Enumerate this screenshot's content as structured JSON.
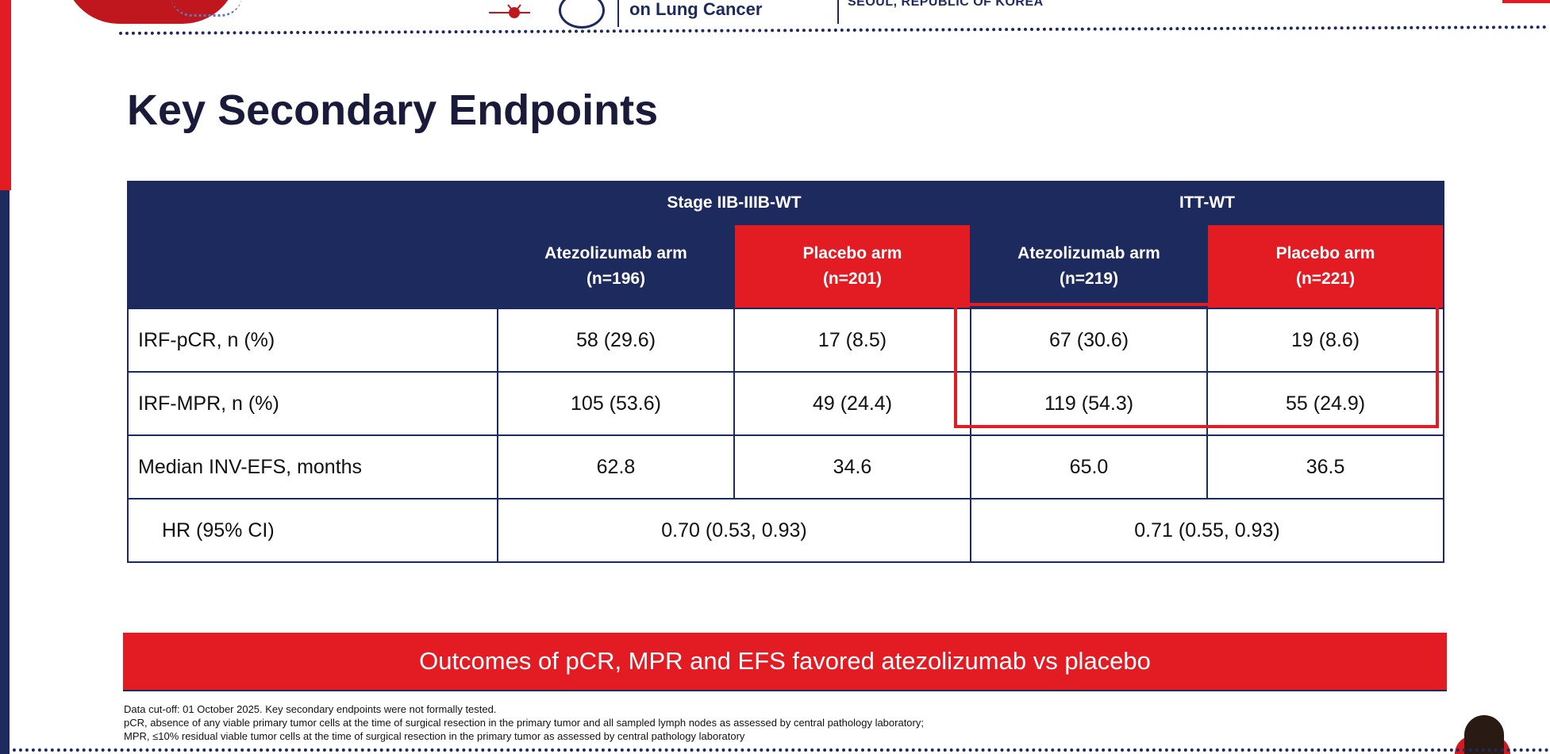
{
  "header": {
    "conference_line": "on Lung Cancer",
    "location": "SEOUL, REPUBLIC OF KOREA"
  },
  "title": "Key Secondary Endpoints",
  "table": {
    "groups": [
      {
        "label": "Stage IIB-IIIB-WT",
        "arms": [
          {
            "name": "Atezolizumab arm",
            "n": "(n=196)"
          },
          {
            "name": "Placebo arm",
            "n": "(n=201)"
          }
        ]
      },
      {
        "label": "ITT-WT",
        "arms": [
          {
            "name": "Atezolizumab arm",
            "n": "(n=219)"
          },
          {
            "name": "Placebo arm",
            "n": "(n=221)"
          }
        ]
      }
    ],
    "rows": [
      {
        "label": "IRF-pCR, n (%)",
        "values": [
          "58 (29.6)",
          "17 (8.5)",
          "67 (30.6)",
          "19 (8.6)"
        ]
      },
      {
        "label": "IRF-MPR, n (%)",
        "values": [
          "105 (53.6)",
          "49 (24.4)",
          "119 (54.3)",
          "55 (24.9)"
        ]
      },
      {
        "label": "Median INV-EFS, months",
        "values": [
          "62.8",
          "34.6",
          "65.0",
          "36.5"
        ]
      }
    ],
    "hr_row": {
      "label": "HR (95% CI)",
      "values": [
        "0.70 (0.53, 0.93)",
        "0.71 (0.55, 0.93)"
      ]
    }
  },
  "banner": "Outcomes of pCR, MPR and EFS favored atezolizumab vs placebo",
  "footnotes": [
    "Data cut-off: 01 October 2025. Key secondary endpoints were not formally tested.",
    "pCR, absence of any viable primary tumor cells at the time of surgical resection in the primary tumor and all sampled lymph nodes as assessed by central pathology laboratory;",
    "MPR, ≤10% residual viable tumor cells at the time of surgical resection in the primary tumor as assessed by central pathology laboratory"
  ],
  "colors": {
    "navy": "#1d2a5e",
    "red": "#e31b23"
  }
}
